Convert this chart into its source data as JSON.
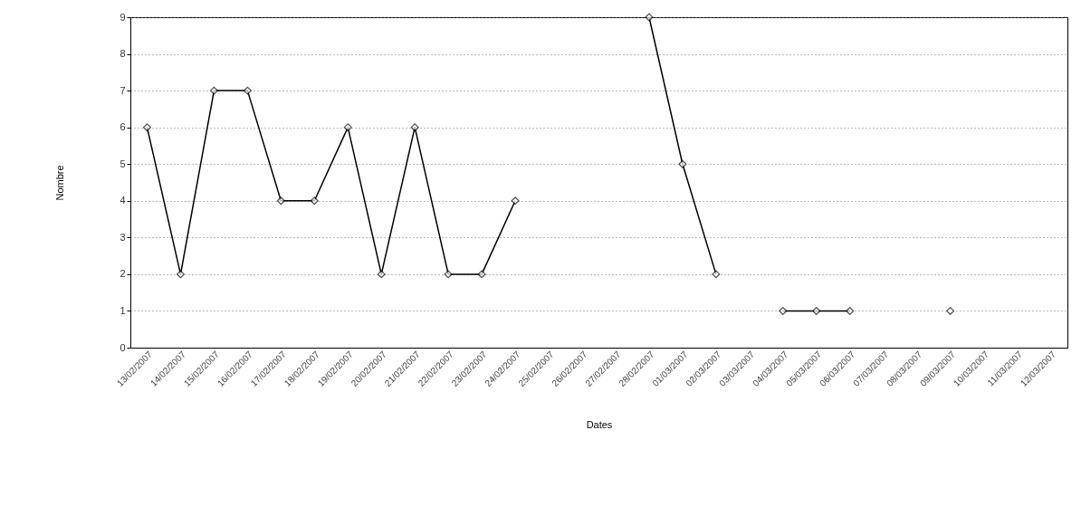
{
  "chart_data": {
    "type": "line",
    "xlabel": "Dates",
    "ylabel": "Nombre",
    "categories": [
      "13/02/2007",
      "14/02/2007",
      "15/02/2007",
      "16/02/2007",
      "17/02/2007",
      "18/02/2007",
      "19/02/2007",
      "20/02/2007",
      "21/02/2007",
      "22/02/2007",
      "23/02/2007",
      "24/02/2007",
      "25/02/2007",
      "26/02/2007",
      "27/02/2007",
      "28/02/2007",
      "01/03/2007",
      "02/03/2007",
      "03/03/2007",
      "04/03/2007",
      "05/03/2007",
      "06/03/2007",
      "07/03/2007",
      "08/03/2007",
      "09/03/2007",
      "10/03/2007",
      "11/03/2007",
      "12/03/2007"
    ],
    "series": [
      {
        "color": "#000000",
        "values": [
          6,
          2,
          7,
          7,
          4,
          4,
          6,
          2,
          6,
          2,
          2,
          4,
          null,
          null,
          null,
          9,
          5,
          2,
          null,
          1,
          1,
          1,
          null,
          null,
          1,
          null,
          null,
          null
        ]
      }
    ],
    "ylim": [
      0,
      9
    ],
    "yticks": [
      0,
      1,
      2,
      3,
      4,
      5,
      6,
      7,
      8,
      9
    ],
    "grid": "y",
    "marker": "diamond",
    "line_style": "solid"
  }
}
